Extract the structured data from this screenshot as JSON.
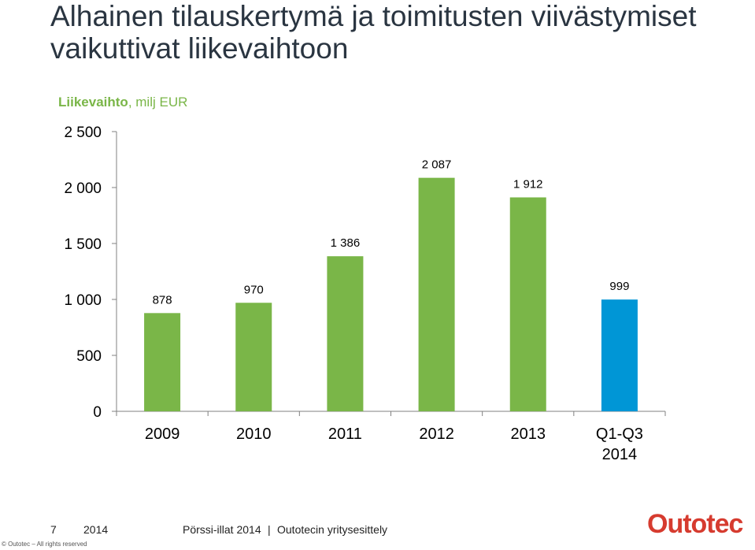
{
  "header": {
    "title": "Alhainen tilauskertymä ja toimitusten viivästymiset vaikuttivat liikevaihtoon"
  },
  "chart_data": {
    "type": "bar",
    "subtitle_bold": "Liikevaihto",
    "subtitle_rest": ", milj EUR",
    "categories": [
      [
        "2009"
      ],
      [
        "2010"
      ],
      [
        "2011"
      ],
      [
        "2012"
      ],
      [
        "2013"
      ],
      [
        "Q1-Q3",
        "2014"
      ]
    ],
    "values": [
      878,
      970,
      1386,
      2087,
      1912,
      999
    ],
    "data_labels": [
      "878",
      "970",
      "1 386",
      "2 087",
      "1 912",
      "999"
    ],
    "colors": [
      "#7ab648",
      "#7ab648",
      "#7ab648",
      "#7ab648",
      "#7ab648",
      "#0096d6"
    ],
    "ylim": [
      0,
      2500
    ],
    "yticks": [
      0,
      500,
      1000,
      1500,
      2000,
      2500
    ],
    "ytick_labels": [
      "0",
      "500",
      "1 000",
      "1 500",
      "2 000",
      "2 500"
    ],
    "grid": false
  },
  "footer": {
    "page_number": "7",
    "year": "2014",
    "event": "Pörssi-illat 2014",
    "separator": "|",
    "presentation": "Outotecin yritysesittely",
    "copyright": "© Outotec – All rights reserved",
    "logo_text": "Outotec"
  },
  "colors": {
    "brand_green": "#7ab648",
    "highlight_blue": "#0096d6",
    "logo_red": "#d63b2f"
  }
}
